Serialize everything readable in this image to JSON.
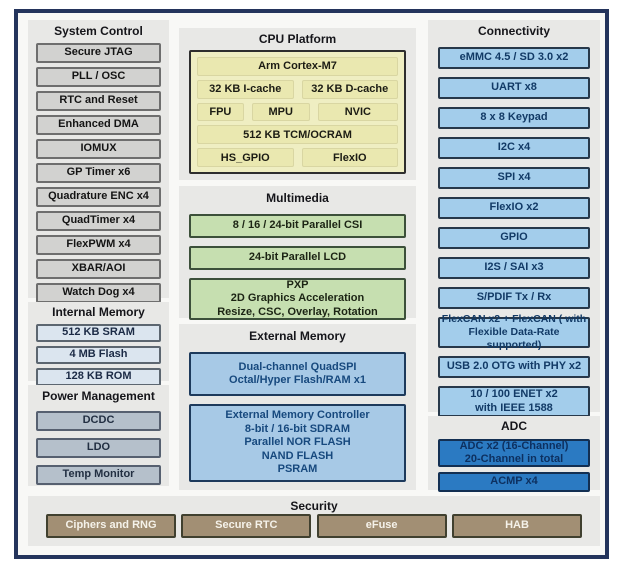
{
  "system_control": {
    "title": "System Control",
    "items": [
      "Secure JTAG",
      "PLL / OSC",
      "RTC and Reset",
      "Enhanced DMA",
      "IOMUX",
      "GP Timer x6",
      "Quadrature ENC x4",
      "QuadTimer x4",
      "FlexPWM x4",
      "XBAR/AOI",
      "Watch Dog x4"
    ]
  },
  "internal_memory": {
    "title": "Internal Memory",
    "items": [
      "512 KB SRAM",
      "4 MB Flash",
      "128 KB ROM"
    ]
  },
  "power_management": {
    "title": "Power Management",
    "items": [
      "DCDC",
      "LDO",
      "Temp Monitor"
    ]
  },
  "cpu_platform": {
    "title": "CPU Platform",
    "core": "Arm Cortex-M7",
    "caches": [
      "32 KB I-cache",
      "32 KB D-cache"
    ],
    "units": [
      "FPU",
      "MPU",
      "NVIC"
    ],
    "tcm": "512 KB TCM/OCRAM",
    "io": [
      "HS_GPIO",
      "FlexIO"
    ]
  },
  "multimedia": {
    "title": "Multimedia",
    "items": [
      "8 / 16 / 24-bit Parallel CSI",
      "24-bit Parallel LCD",
      "PXP\n2D Graphics Acceleration\nResize, CSC, Overlay, Rotation"
    ]
  },
  "external_memory": {
    "title": "External Memory",
    "items": [
      "Dual-channel QuadSPI\nOctal/Hyper Flash/RAM x1",
      "External Memory Controller\n8-bit / 16-bit SDRAM\nParallel NOR FLASH\nNAND FLASH\nPSRAM"
    ]
  },
  "connectivity": {
    "title": "Connectivity",
    "items": [
      "eMMC 4.5 / SD 3.0 x2",
      "UART x8",
      "8 x 8 Keypad",
      "I2C x4",
      "SPI x4",
      "FlexIO x2",
      "GPIO",
      "I2S / SAI x3",
      "S/PDIF Tx / Rx",
      "FlexCAN x2  + FlexCAN ( with\nFlexible Data-Rate supported)",
      "USB 2.0 OTG with PHY x2",
      "10 / 100 ENET x2\nwith IEEE 1588"
    ]
  },
  "adc": {
    "title": "ADC",
    "items": [
      "ADC x2 (16-Channel)\n20-Channel in total",
      "ACMP x4"
    ]
  },
  "security": {
    "title": "Security",
    "items": [
      "Ciphers and RNG",
      "Secure RTC",
      "eFuse",
      "HAB"
    ]
  },
  "colors": {
    "frame_border": "#24345c",
    "panel_bg": "#e8e8e6",
    "gray_block": "#d2d2d0",
    "internal_memory_block": "#dbe5ef",
    "power_block": "#b5c0cb",
    "cpu_block": "#efeec2",
    "multimedia_block": "#c6dfb0",
    "external_memory_block": "#a7c9e6",
    "connectivity_block": "#a3cdeb",
    "adc_block": "#2b7ac2",
    "security_block": "#a28f74"
  }
}
